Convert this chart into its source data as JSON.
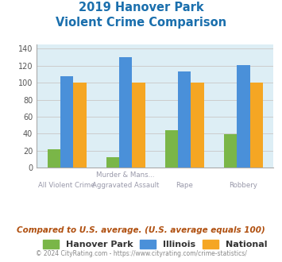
{
  "title_line1": "2019 Hanover Park",
  "title_line2": "Violent Crime Comparison",
  "title_color": "#1a6fad",
  "top_labels": [
    "",
    "Murder & Mans...",
    "",
    ""
  ],
  "bottom_labels": [
    "All Violent Crime",
    "Aggravated Assault",
    "Rape",
    "Robbery"
  ],
  "hanover_park": [
    22,
    12,
    44,
    39
  ],
  "illinois": [
    108,
    130,
    113,
    121
  ],
  "national": [
    100,
    100,
    100,
    100
  ],
  "colors": {
    "hanover_park": "#7ab648",
    "illinois": "#4a90d9",
    "national": "#f5a623"
  },
  "ylim": [
    0,
    145
  ],
  "yticks": [
    0,
    20,
    40,
    60,
    80,
    100,
    120,
    140
  ],
  "grid_color": "#cccccc",
  "bg_color": "#ddeef5",
  "footnote": "Compared to U.S. average. (U.S. average equals 100)",
  "footnote_color": "#b05010",
  "copyright": "© 2024 CityRating.com - https://www.cityrating.com/crime-statistics/",
  "copyright_color": "#888888",
  "legend_labels": [
    "Hanover Park",
    "Illinois",
    "National"
  ]
}
